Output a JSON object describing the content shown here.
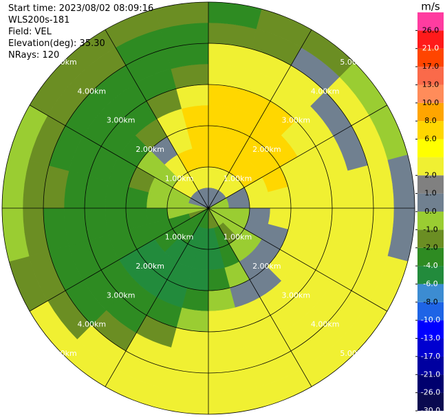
{
  "chart_data": {
    "type": "ppi",
    "header": [
      "Start time: 2023/08/02 08:09:16",
      "WLS200s-181",
      "Field: VEL",
      "Elevation(deg): 35.30",
      "NRays: 120"
    ],
    "rlim": [
      0,
      5
    ],
    "rings": [
      {
        "value": 1,
        "label": "1.00km"
      },
      {
        "value": 2,
        "label": "2.00km"
      },
      {
        "value": 3,
        "label": "3.00km"
      },
      {
        "value": 4,
        "label": "4.00km"
      },
      {
        "value": 5,
        "label": "5.00km"
      }
    ],
    "azimuths": [
      0,
      15,
      30,
      45,
      60,
      75,
      90,
      105,
      120,
      135,
      150,
      165,
      180,
      195,
      210,
      225,
      240,
      255,
      270,
      285,
      300,
      315,
      330,
      345
    ],
    "ranges": [
      0,
      0.5,
      1,
      1.5,
      2,
      2.5,
      3,
      3.5,
      4,
      4.5,
      5
    ],
    "values": [
      [
        0.5,
        3,
        7,
        7,
        7,
        7,
        3,
        3,
        -1.5,
        -3
      ],
      [
        0.5,
        3,
        7,
        7,
        7,
        7,
        3,
        3,
        -1.5,
        -1.5
      ],
      [
        0.5,
        3,
        7,
        7,
        7,
        7,
        3,
        3,
        0.5,
        -1.5
      ],
      [
        0.5,
        3,
        7,
        7,
        7,
        3,
        3,
        0.5,
        3,
        -0.5
      ],
      [
        -0.5,
        0.5,
        3,
        7,
        3,
        3,
        3,
        0.5,
        3,
        -0.5
      ],
      [
        -0.5,
        0.5,
        3,
        3,
        3,
        3,
        3,
        3,
        3,
        0.5
      ],
      [
        -0.5,
        -0.5,
        0.5,
        3,
        3,
        3,
        3,
        3,
        3,
        0.5
      ],
      [
        -0.5,
        -0.5,
        0.5,
        0.5,
        3,
        3,
        3,
        3,
        3,
        3
      ],
      [
        -0.5,
        -0.5,
        -0.5,
        0.5,
        3,
        3,
        3,
        3,
        3,
        3
      ],
      [
        -0.5,
        -1.5,
        -0.5,
        0.5,
        0.5,
        3,
        3,
        3,
        3,
        3
      ],
      [
        -1.5,
        -3,
        -3,
        -0.5,
        0.5,
        3,
        3,
        3,
        3,
        3
      ],
      [
        -1.5,
        -5,
        -5,
        -3,
        -0.5,
        3,
        3,
        3,
        3,
        3
      ],
      [
        -3,
        -5,
        -5,
        -5,
        -3,
        -0.5,
        3,
        3,
        3,
        3
      ],
      [
        -3,
        -5,
        -5,
        -5,
        -5,
        -3,
        -1.5,
        3,
        3,
        3
      ],
      [
        -3,
        -3,
        -5,
        -5,
        -5,
        -3,
        -3,
        -1.5,
        3,
        3
      ],
      [
        -3,
        -3,
        -3,
        -5,
        -5,
        -3,
        -3,
        -3,
        -1.5,
        3
      ],
      [
        -1.5,
        -3,
        -3,
        -3,
        -3,
        -3,
        -3,
        -3,
        -1.5,
        -1.5
      ],
      [
        -0.5,
        -0.5,
        -3,
        -3,
        -3,
        -3,
        -3,
        -3,
        -1.5,
        -0.5
      ],
      [
        -0.5,
        -0.5,
        -0.5,
        -3,
        -3,
        -3,
        -3,
        -1.5,
        -1.5,
        -0.5
      ],
      [
        0.5,
        -0.5,
        -0.5,
        -1.5,
        -3,
        -3,
        -3,
        -3,
        -1.5,
        -0.5
      ],
      [
        0.5,
        3,
        -0.5,
        -0.5,
        -3,
        -3,
        -3,
        -3,
        -1.5,
        -1.5
      ],
      [
        0.5,
        3,
        3,
        0.5,
        -1.5,
        -3,
        -3,
        -3,
        -1.5,
        -1.5
      ],
      [
        0.5,
        3,
        7,
        3,
        3,
        -1.5,
        -3,
        -3,
        -3,
        -1.5
      ],
      [
        0.5,
        3,
        7,
        7,
        7,
        3,
        -1.5,
        -3,
        -3,
        -1.5
      ]
    ],
    "colorbar": {
      "title": "m/s",
      "bounds": [
        -30,
        -26,
        -21,
        -17,
        -13,
        -10,
        -8,
        -6,
        -4,
        -2,
        -1,
        0,
        1,
        2,
        4,
        6,
        8,
        10,
        13,
        17,
        21,
        26,
        30
      ],
      "colors": [
        "#0a0a50",
        "#00006e",
        "#0000a0",
        "#0000d0",
        "#0000ff",
        "#1e64e6",
        "#3c8cd2",
        "#228b3c",
        "#2e8b22",
        "#6b8e23",
        "#9acd32",
        "#708090",
        "#808080",
        "#f0f032",
        "#ffff00",
        "#ffd700",
        "#ffa500",
        "#ff8c5a",
        "#fa6a4a",
        "#ff4500",
        "#ff1a1a",
        "#ff3ca0"
      ],
      "ticks": [
        {
          "value": 26,
          "label": "26.0"
        },
        {
          "value": 21,
          "label": "21.0"
        },
        {
          "value": 17,
          "label": "17.0"
        },
        {
          "value": 13,
          "label": "13.0"
        },
        {
          "value": 10,
          "label": "10.0"
        },
        {
          "value": 8,
          "label": "8.0"
        },
        {
          "value": 6,
          "label": "6.0"
        },
        {
          "value": 2,
          "label": "2.0"
        },
        {
          "value": 1,
          "label": "1.0"
        },
        {
          "value": 0,
          "label": "0.0"
        },
        {
          "value": -1,
          "label": "-1.0"
        },
        {
          "value": -2,
          "label": "-2.0"
        },
        {
          "value": -4,
          "label": "-4.0"
        },
        {
          "value": -6,
          "label": "-6.0"
        },
        {
          "value": -8,
          "label": "-8.0"
        },
        {
          "value": -10,
          "label": "-10.0"
        },
        {
          "value": -13,
          "label": "-13.0"
        },
        {
          "value": -17,
          "label": "-17.0"
        },
        {
          "value": -21,
          "label": "-21.0"
        },
        {
          "value": -26,
          "label": "-26.0"
        },
        {
          "value": -30,
          "label": "-30.0"
        }
      ]
    }
  }
}
